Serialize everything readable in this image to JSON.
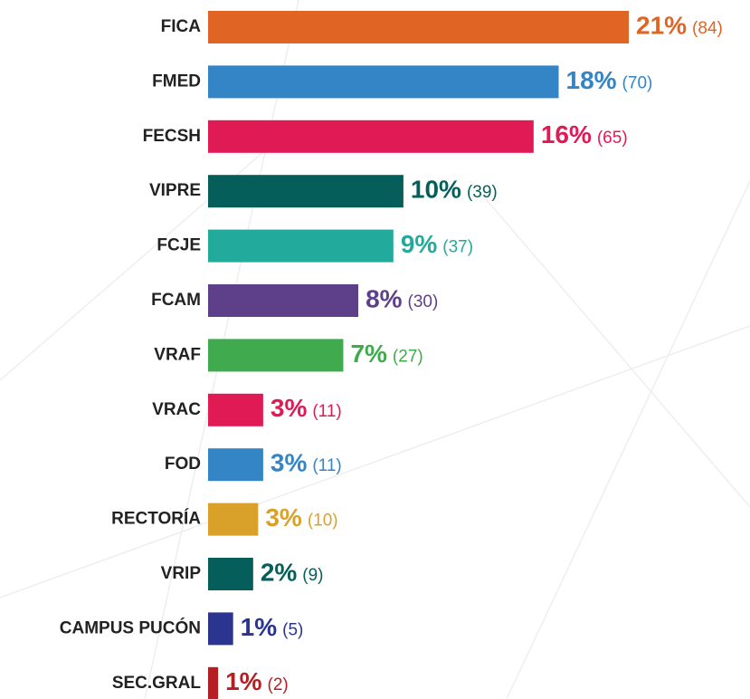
{
  "chart_data": {
    "type": "bar",
    "orientation": "horizontal",
    "categories": [
      "FICA",
      "FMED",
      "FECSH",
      "VIPRE",
      "FCJE",
      "FCAM",
      "VRAF",
      "VRAC",
      "FOD",
      "RECTORÍA",
      "VRIP",
      "CAMPUS PUCÓN",
      "SEC.GRAL"
    ],
    "values": [
      84,
      70,
      65,
      39,
      37,
      30,
      27,
      11,
      11,
      10,
      9,
      5,
      2
    ],
    "value_labels": [
      "(84)",
      "(70)",
      "(65)",
      "(39)",
      "(37)",
      "(30)",
      "(27)",
      "(11)",
      "(11)",
      "(10)",
      "(9)",
      "(5)",
      "(2)"
    ],
    "percentages": [
      21,
      18,
      16,
      10,
      9,
      8,
      7,
      3,
      3,
      3,
      2,
      1,
      1
    ],
    "percentage_labels": [
      "21%",
      "18%",
      "16%",
      "10%",
      "9%",
      "8%",
      "7%",
      "3%",
      "3%",
      "3%",
      "2%",
      "1%",
      "1%"
    ],
    "colors": [
      "#e06424",
      "#3385c6",
      "#e01a55",
      "#065e5a",
      "#22aa9c",
      "#5e3f8a",
      "#3faa4e",
      "#e01a55",
      "#3385c6",
      "#d9a12a",
      "#065e5a",
      "#2b3590",
      "#b51e23"
    ]
  }
}
